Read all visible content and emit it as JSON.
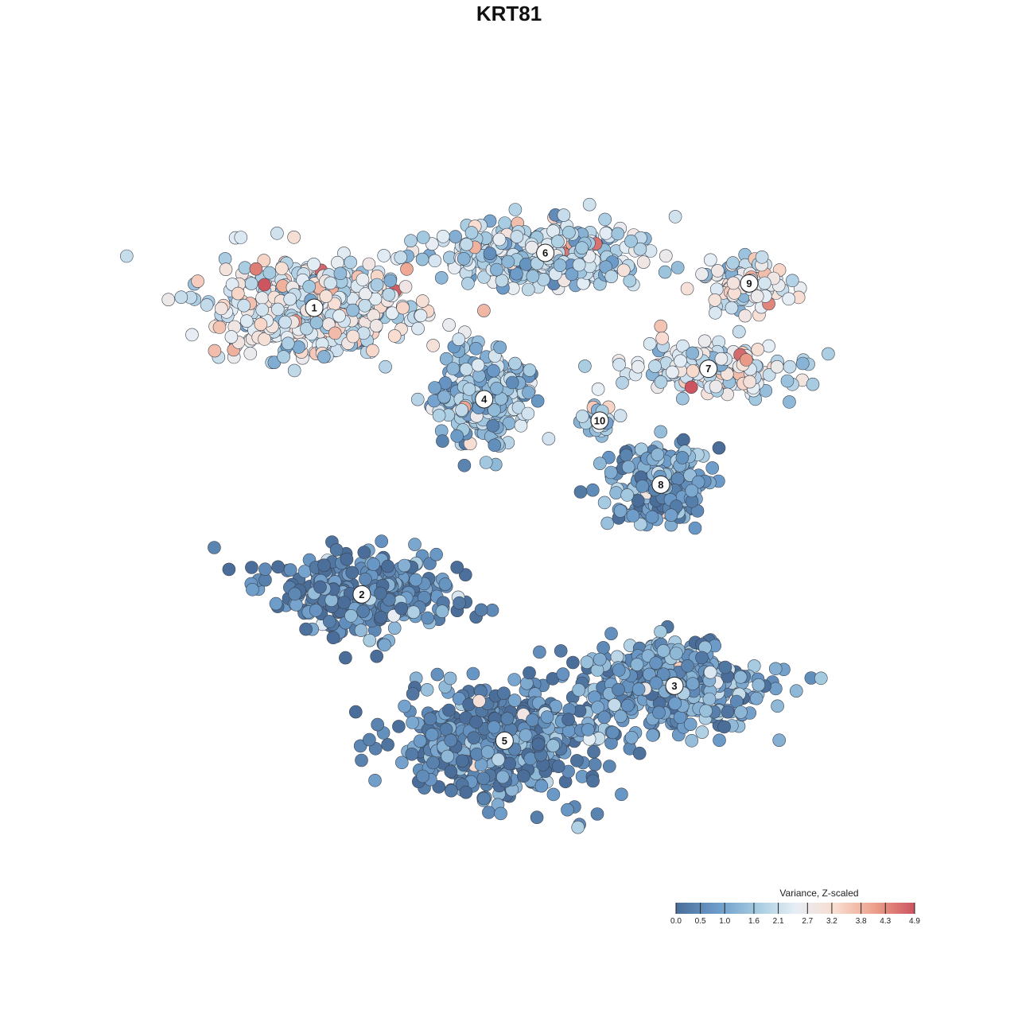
{
  "chart_data": {
    "type": "scatter",
    "title": "KRT81",
    "xlabel": "",
    "ylabel": "",
    "grid": false,
    "legend_placement": "bottom-right",
    "colorbar": {
      "title": "Variance, Z-scaled",
      "ticks": [
        "0.0",
        "0.5",
        "1.0",
        "1.6",
        "2.1",
        "2.7",
        "3.2",
        "3.8",
        "4.3",
        "4.9"
      ],
      "min": 0.0,
      "max": 4.9,
      "colors": [
        "#4a6e99",
        "#6b9ac8",
        "#a3c9e0",
        "#e6eef5",
        "#f9ddd0",
        "#eca08a",
        "#cc5560"
      ]
    },
    "clusters": [
      {
        "label": "1",
        "x": -6.2,
        "y": 4.6,
        "spread_x": 2.6,
        "spread_y": 1.4,
        "n": 520,
        "mean_value": 2.4
      },
      {
        "label": "6",
        "x": 0.6,
        "y": 6.4,
        "spread_x": 2.8,
        "spread_y": 0.9,
        "n": 360,
        "mean_value": 1.9
      },
      {
        "label": "4",
        "x": -1.2,
        "y": 1.6,
        "spread_x": 1.2,
        "spread_y": 1.3,
        "n": 300,
        "mean_value": 1.5
      },
      {
        "label": "10",
        "x": 2.2,
        "y": 0.9,
        "spread_x": 0.4,
        "spread_y": 0.5,
        "n": 40,
        "mean_value": 1.6
      },
      {
        "label": "7",
        "x": 5.4,
        "y": 2.6,
        "spread_x": 2.2,
        "spread_y": 0.7,
        "n": 200,
        "mean_value": 2.3
      },
      {
        "label": "9",
        "x": 6.6,
        "y": 5.4,
        "spread_x": 1.3,
        "spread_y": 0.7,
        "n": 110,
        "mean_value": 2.4
      },
      {
        "label": "8",
        "x": 4.0,
        "y": -1.2,
        "spread_x": 1.3,
        "spread_y": 1.1,
        "n": 240,
        "mean_value": 0.9
      },
      {
        "label": "2",
        "x": -4.8,
        "y": -4.8,
        "spread_x": 2.4,
        "spread_y": 1.2,
        "n": 300,
        "mean_value": 0.4
      },
      {
        "label": "3",
        "x": 4.4,
        "y": -7.8,
        "spread_x": 2.4,
        "spread_y": 1.3,
        "n": 380,
        "mean_value": 0.9
      },
      {
        "label": "5",
        "x": -0.6,
        "y": -9.6,
        "spread_x": 2.6,
        "spread_y": 1.6,
        "n": 560,
        "mean_value": 0.5
      }
    ],
    "xlim": [
      -11,
      11
    ],
    "ylim": [
      -14,
      10
    ]
  }
}
